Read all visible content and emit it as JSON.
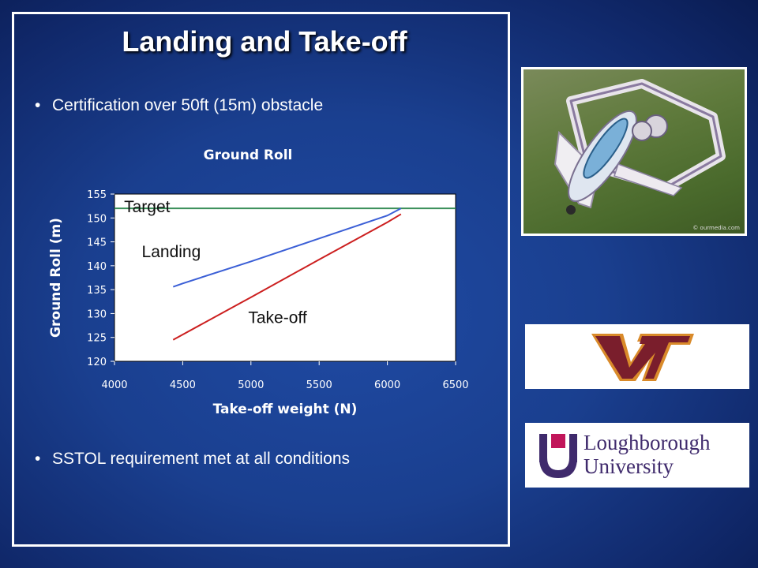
{
  "slide": {
    "title": "Landing and Take-off",
    "bullets": [
      "Certification over 50ft (15m) obstacle",
      "SSTOL requirement met at all conditions"
    ]
  },
  "logos": {
    "vt": {
      "text": "VT",
      "color": "#7a1e2c",
      "accent": "#d98a2a"
    },
    "loughborough": {
      "line1": "Loughborough",
      "line2": "University",
      "color": "#3f2a6c"
    }
  },
  "photo": {
    "subject": "aircraft-render",
    "watermark": "© ourmedia.com"
  },
  "chart_data": {
    "type": "line",
    "title": "Ground Roll",
    "xlabel": "Take-off weight (N)",
    "ylabel": "Ground Roll (m)",
    "xlim": [
      4000,
      6500
    ],
    "ylim": [
      120,
      155
    ],
    "xticks": [
      4000,
      4500,
      5000,
      5500,
      6000,
      6500
    ],
    "yticks": [
      120,
      125,
      130,
      135,
      140,
      145,
      150,
      155
    ],
    "grid": false,
    "series": [
      {
        "name": "Landing",
        "color": "#3b5fd6",
        "x": [
          4430,
          4500,
          5000,
          5500,
          6000,
          6100
        ],
        "y": [
          135.6,
          136.3,
          140.9,
          145.7,
          150.5,
          152
        ]
      },
      {
        "name": "Take-off",
        "color": "#cc1f1f",
        "x": [
          4430,
          4500,
          5000,
          5500,
          6000,
          6100
        ],
        "y": [
          124.5,
          125.6,
          133.4,
          141.3,
          149.1,
          150.8
        ]
      }
    ],
    "reference_line": {
      "name": "Target",
      "y": 152,
      "color": "#3a8f5a"
    },
    "annotations": [
      {
        "text": "Target",
        "x": 4070,
        "y": 151.2
      },
      {
        "text": "Landing",
        "x": 4200,
        "y": 141.8
      },
      {
        "text": "Take-off",
        "x": 4980,
        "y": 128.0
      }
    ]
  }
}
